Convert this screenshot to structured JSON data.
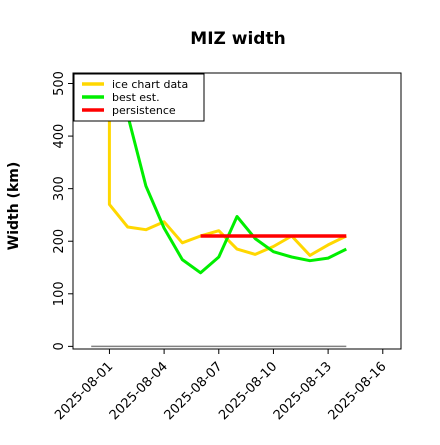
{
  "chart_data": {
    "type": "line",
    "title": "MIZ width",
    "xlabel": "",
    "ylabel": "Width (km)",
    "xlim": [
      "2025-07-30",
      "2025-08-17"
    ],
    "ylim": [
      -5,
      520
    ],
    "yticks": [
      0,
      100,
      200,
      300,
      400,
      500
    ],
    "xticks": [
      "2025-08-01",
      "2025-08-04",
      "2025-08-07",
      "2025-08-10",
      "2025-08-13",
      "2025-08-16"
    ],
    "legend_position": "top-left",
    "grid": false,
    "series": [
      {
        "name": "ice chart data",
        "color": "#ffd700",
        "x": [
          "2025-08-01",
          "2025-08-01",
          "2025-08-02",
          "2025-08-03",
          "2025-08-04",
          "2025-08-05",
          "2025-08-06",
          "2025-08-07",
          "2025-08-08",
          "2025-08-09",
          "2025-08-10",
          "2025-08-11",
          "2025-08-12",
          "2025-08-13",
          "2025-08-14"
        ],
        "y": [
          450,
          270,
          227,
          222,
          237,
          197,
          210,
          220,
          185,
          175,
          190,
          210,
          173,
          193,
          210
        ]
      },
      {
        "name": "best est.",
        "color": "#00ee00",
        "x": [
          "2025-08-02",
          "2025-08-03",
          "2025-08-04",
          "2025-08-05",
          "2025-08-06",
          "2025-08-07",
          "2025-08-08",
          "2025-08-09",
          "2025-08-10",
          "2025-08-11",
          "2025-08-12",
          "2025-08-13",
          "2025-08-14"
        ],
        "y": [
          440,
          305,
          225,
          165,
          140,
          170,
          247,
          205,
          180,
          170,
          163,
          168,
          185
        ]
      },
      {
        "name": "persistence",
        "color": "#ff0000",
        "x": [
          "2025-08-06",
          "2025-08-14"
        ],
        "y": [
          210,
          210
        ]
      },
      {
        "name": "",
        "color": "#808080",
        "x": [
          "2025-07-31",
          "2025-08-14"
        ],
        "y": [
          0,
          0
        ]
      }
    ]
  }
}
